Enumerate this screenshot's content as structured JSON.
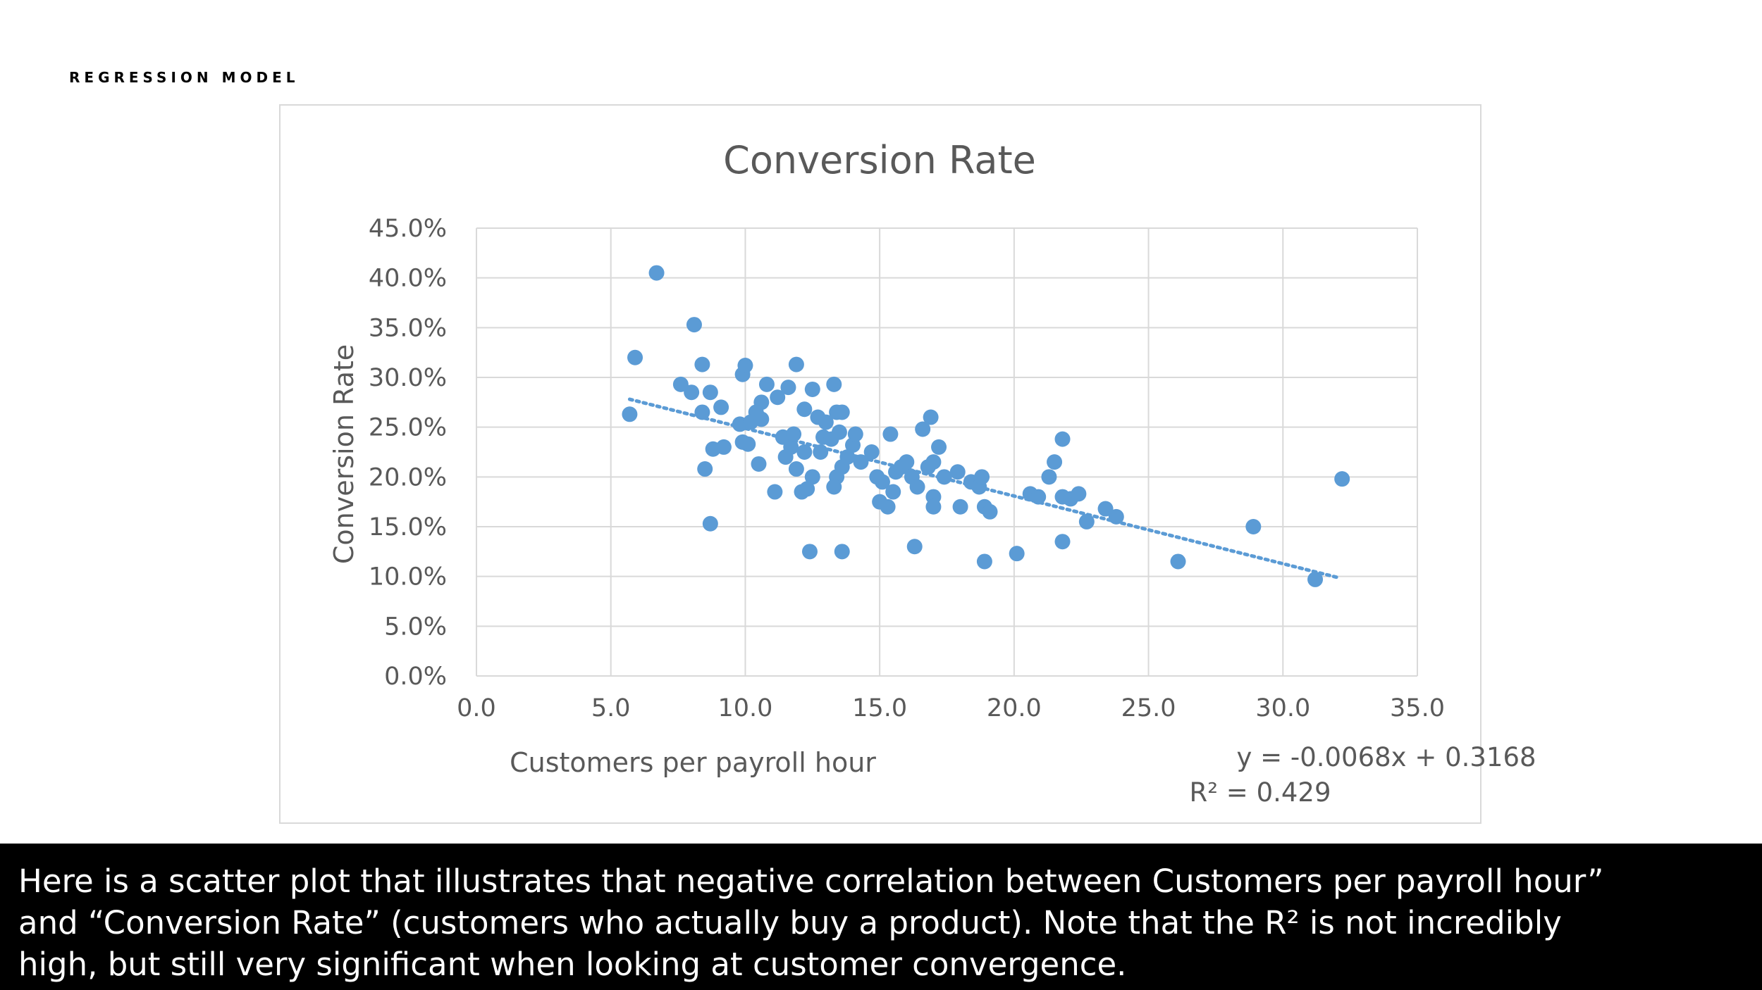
{
  "slide": {
    "section_label": "REGRESSION MODEL",
    "caption": "Here is a scatter plot that illustrates that negative correlation between Customers per payroll hour”\nand “Conversion Rate” (customers who actually buy a product). Note that the R² is not incredibly\nhigh, but still very significant when looking at customer convergence."
  },
  "chart_data": {
    "type": "scatter",
    "title": "Conversion Rate",
    "xlabel": "Customers per payroll hour",
    "ylabel": "Conversion Rate",
    "xlim": [
      0,
      35
    ],
    "ylim": [
      0,
      0.45
    ],
    "x_ticks": [
      "0.0",
      "5.0",
      "10.0",
      "15.0",
      "20.0",
      "25.0",
      "30.0",
      "35.0"
    ],
    "y_ticks": [
      "0.0%",
      "5.0%",
      "10.0%",
      "15.0%",
      "20.0%",
      "25.0%",
      "30.0%",
      "35.0%",
      "40.0%",
      "45.0%"
    ],
    "grid": true,
    "legend": "none",
    "marker_color": "#5b9bd5",
    "trendline": {
      "type": "linear",
      "slope": -0.0068,
      "intercept": 0.3168,
      "x_range": [
        5.7,
        32.0
      ],
      "style": "dotted",
      "equation_label": "y = -0.0068x + 0.3168",
      "r2_label": "R² = 0.429"
    },
    "points": [
      [
        6.7,
        0.405
      ],
      [
        5.9,
        0.32
      ],
      [
        5.7,
        0.263
      ],
      [
        8.1,
        0.353
      ],
      [
        8.4,
        0.313
      ],
      [
        7.6,
        0.293
      ],
      [
        8.0,
        0.285
      ],
      [
        8.7,
        0.285
      ],
      [
        8.4,
        0.265
      ],
      [
        9.1,
        0.27
      ],
      [
        9.9,
        0.303
      ],
      [
        10.0,
        0.312
      ],
      [
        10.8,
        0.293
      ],
      [
        11.2,
        0.28
      ],
      [
        11.6,
        0.29
      ],
      [
        12.5,
        0.288
      ],
      [
        11.9,
        0.313
      ],
      [
        13.3,
        0.293
      ],
      [
        12.2,
        0.268
      ],
      [
        10.6,
        0.275
      ],
      [
        10.4,
        0.265
      ],
      [
        9.8,
        0.253
      ],
      [
        10.2,
        0.255
      ],
      [
        10.6,
        0.258
      ],
      [
        9.2,
        0.23
      ],
      [
        8.8,
        0.228
      ],
      [
        8.5,
        0.208
      ],
      [
        10.1,
        0.233
      ],
      [
        9.9,
        0.235
      ],
      [
        10.5,
        0.213
      ],
      [
        8.7,
        0.153
      ],
      [
        11.1,
        0.185
      ],
      [
        11.4,
        0.24
      ],
      [
        11.7,
        0.23
      ],
      [
        11.5,
        0.22
      ],
      [
        11.8,
        0.243
      ],
      [
        11.9,
        0.208
      ],
      [
        12.1,
        0.185
      ],
      [
        12.3,
        0.188
      ],
      [
        12.5,
        0.2
      ],
      [
        12.2,
        0.225
      ],
      [
        12.8,
        0.225
      ],
      [
        12.9,
        0.24
      ],
      [
        12.7,
        0.26
      ],
      [
        13.0,
        0.255
      ],
      [
        13.2,
        0.238
      ],
      [
        13.4,
        0.265
      ],
      [
        13.6,
        0.265
      ],
      [
        13.5,
        0.245
      ],
      [
        13.4,
        0.2
      ],
      [
        13.3,
        0.19
      ],
      [
        13.6,
        0.21
      ],
      [
        13.8,
        0.22
      ],
      [
        14.0,
        0.232
      ],
      [
        14.1,
        0.243
      ],
      [
        14.3,
        0.215
      ],
      [
        14.7,
        0.225
      ],
      [
        14.9,
        0.2
      ],
      [
        15.1,
        0.195
      ],
      [
        15.0,
        0.175
      ],
      [
        15.3,
        0.17
      ],
      [
        15.5,
        0.185
      ],
      [
        15.6,
        0.205
      ],
      [
        15.8,
        0.21
      ],
      [
        16.0,
        0.215
      ],
      [
        16.2,
        0.2
      ],
      [
        16.4,
        0.19
      ],
      [
        15.4,
        0.243
      ],
      [
        16.6,
        0.248
      ],
      [
        16.9,
        0.26
      ],
      [
        16.8,
        0.21
      ],
      [
        17.0,
        0.215
      ],
      [
        17.2,
        0.23
      ],
      [
        17.4,
        0.2
      ],
      [
        17.0,
        0.18
      ],
      [
        17.0,
        0.17
      ],
      [
        17.9,
        0.205
      ],
      [
        18.0,
        0.17
      ],
      [
        18.4,
        0.195
      ],
      [
        18.7,
        0.19
      ],
      [
        18.8,
        0.2
      ],
      [
        18.9,
        0.17
      ],
      [
        19.1,
        0.165
      ],
      [
        12.4,
        0.125
      ],
      [
        13.6,
        0.125
      ],
      [
        16.3,
        0.13
      ],
      [
        18.9,
        0.115
      ],
      [
        20.1,
        0.123
      ],
      [
        20.6,
        0.183
      ],
      [
        20.9,
        0.18
      ],
      [
        21.3,
        0.2
      ],
      [
        21.5,
        0.215
      ],
      [
        21.8,
        0.238
      ],
      [
        21.8,
        0.18
      ],
      [
        22.1,
        0.178
      ],
      [
        22.4,
        0.183
      ],
      [
        22.7,
        0.155
      ],
      [
        21.8,
        0.135
      ],
      [
        23.4,
        0.168
      ],
      [
        23.8,
        0.16
      ],
      [
        26.1,
        0.115
      ],
      [
        28.9,
        0.15
      ],
      [
        31.2,
        0.097
      ],
      [
        32.2,
        0.198
      ]
    ]
  }
}
